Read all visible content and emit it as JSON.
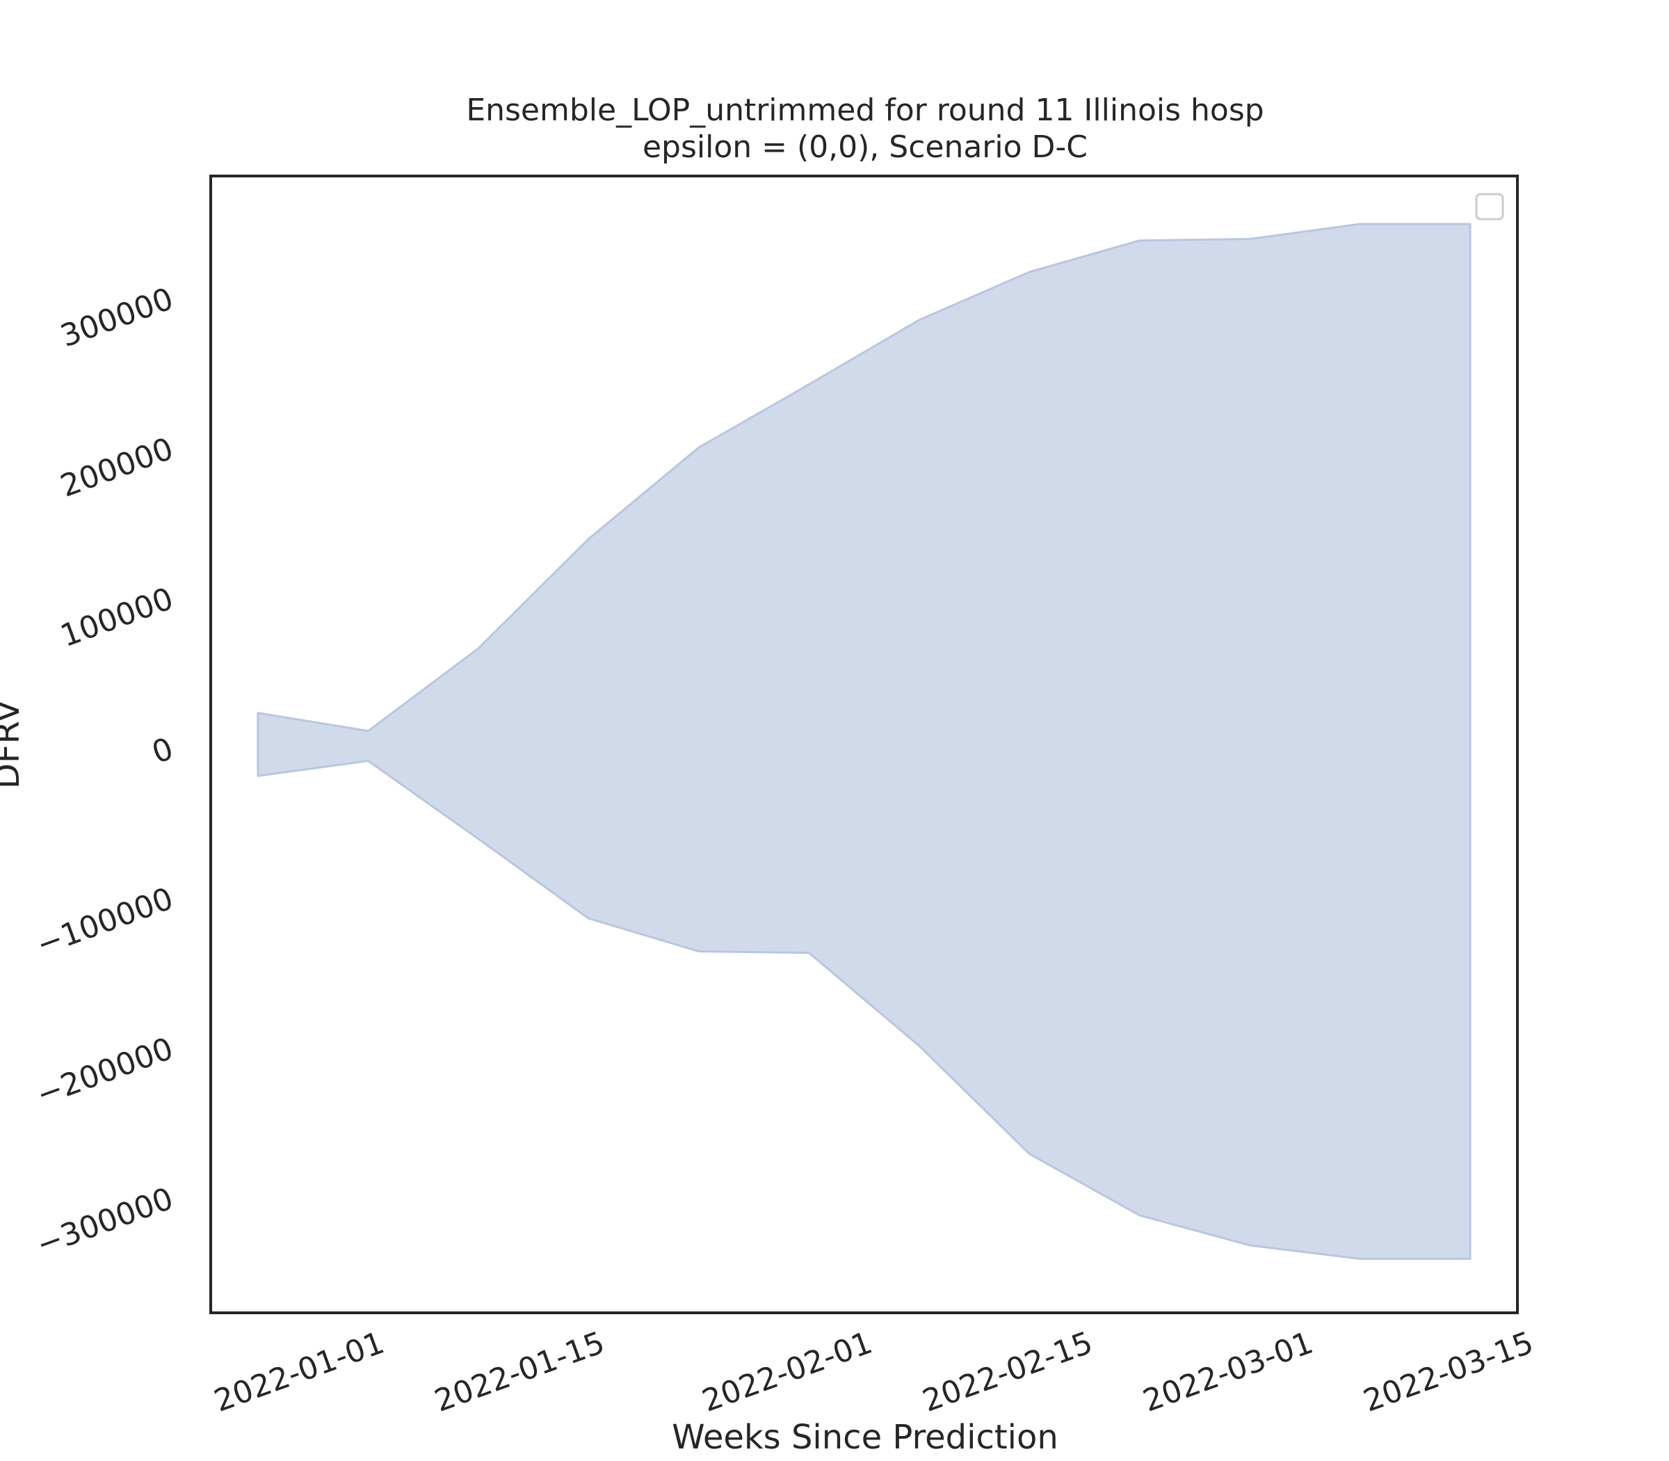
{
  "chart_data": {
    "type": "area",
    "title": "Ensemble_LOP_untrimmed for round 11 Illinois hosp",
    "subtitle": "epsilon = (0,0), Scenario D-C",
    "xlabel": "Weeks Since Prediction",
    "ylabel": "DFRV",
    "x": [
      "2021-12-25",
      "2022-01-01",
      "2022-01-08",
      "2022-01-15",
      "2022-01-22",
      "2022-01-29",
      "2022-02-05",
      "2022-02-12",
      "2022-02-19",
      "2022-02-26",
      "2022-03-05",
      "2022-03-12"
    ],
    "series": [
      {
        "lower": [
          -20000,
          -10000,
          -62000,
          -115000,
          -137000,
          -138000,
          -200000,
          -272000,
          -313000,
          -333000,
          -342000,
          -342000
        ],
        "upper": [
          22000,
          10000,
          65000,
          138000,
          199000,
          241000,
          284000,
          316000,
          337000,
          338000,
          348000,
          348000
        ],
        "color": "#d1daeb",
        "edge_color": "#b9c6e2"
      }
    ],
    "x_ticks": [
      "2022-01-01",
      "2022-01-15",
      "2022-02-01",
      "2022-02-15",
      "2022-03-01",
      "2022-03-15"
    ],
    "y_ticks": [
      -300000,
      -200000,
      -100000,
      0,
      100000,
      200000,
      300000
    ],
    "y_tick_labels": [
      "−300000",
      "−200000",
      "−100000",
      "0",
      "100000",
      "200000",
      "300000"
    ],
    "xlim": [
      "2021-12-22",
      "2022-03-15"
    ],
    "ylim": [
      -378000,
      380000
    ],
    "grid": false,
    "legend": "top-right"
  }
}
